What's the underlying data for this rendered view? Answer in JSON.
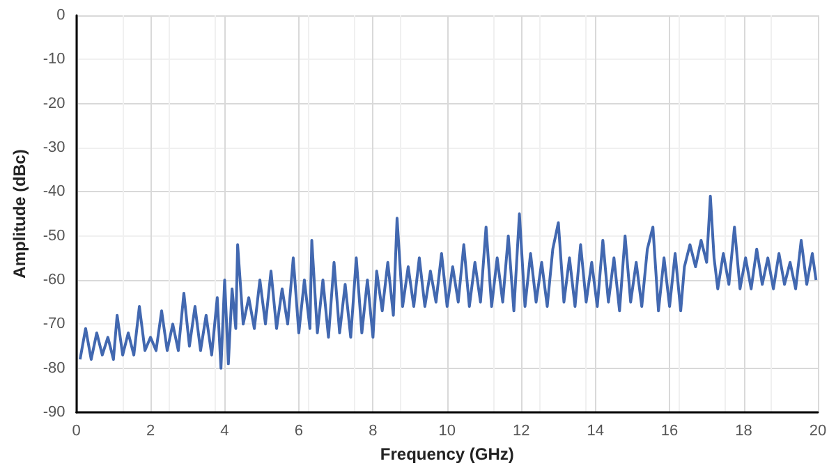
{
  "chart_data": {
    "type": "line",
    "xlabel": "Frequency (GHz)",
    "ylabel": "Amplitude (dBc)",
    "xlim": [
      0,
      20
    ],
    "xticks": [
      0,
      2,
      4,
      6,
      8,
      10,
      12,
      14,
      16,
      18,
      20
    ],
    "ylim": [
      -90,
      0
    ],
    "yticks": [
      -90,
      -80,
      -70,
      -60,
      -50,
      -40,
      -30,
      -20,
      -10,
      0
    ],
    "grid": true,
    "marker": "none",
    "line_style": "solid",
    "x": [
      0.1,
      0.25,
      0.4,
      0.55,
      0.7,
      0.85,
      1.0,
      1.1,
      1.25,
      1.4,
      1.55,
      1.7,
      1.85,
      2.0,
      2.15,
      2.3,
      2.45,
      2.6,
      2.75,
      2.9,
      3.05,
      3.2,
      3.35,
      3.5,
      3.65,
      3.8,
      3.9,
      4.0,
      4.1,
      4.2,
      4.3,
      4.35,
      4.5,
      4.65,
      4.8,
      4.95,
      5.1,
      5.25,
      5.4,
      5.55,
      5.7,
      5.85,
      6.0,
      6.15,
      6.3,
      6.35,
      6.5,
      6.65,
      6.8,
      6.95,
      7.1,
      7.25,
      7.4,
      7.55,
      7.7,
      7.85,
      8.0,
      8.1,
      8.25,
      8.4,
      8.55,
      8.65,
      8.8,
      8.95,
      9.1,
      9.25,
      9.4,
      9.55,
      9.7,
      9.85,
      10.0,
      10.15,
      10.3,
      10.45,
      10.6,
      10.75,
      10.9,
      11.05,
      11.2,
      11.35,
      11.5,
      11.65,
      11.8,
      11.95,
      12.1,
      12.25,
      12.4,
      12.55,
      12.7,
      12.85,
      13.0,
      13.15,
      13.3,
      13.45,
      13.6,
      13.75,
      13.9,
      14.05,
      14.2,
      14.35,
      14.5,
      14.65,
      14.8,
      14.95,
      15.1,
      15.25,
      15.4,
      15.55,
      15.7,
      15.85,
      16.0,
      16.15,
      16.3,
      16.4,
      16.55,
      16.7,
      16.85,
      17.0,
      17.1,
      17.2,
      17.3,
      17.45,
      17.6,
      17.75,
      17.9,
      18.05,
      18.2,
      18.35,
      18.5,
      18.65,
      18.8,
      18.95,
      19.1,
      19.25,
      19.4,
      19.55,
      19.7,
      19.85,
      19.95
    ],
    "series": [
      {
        "color": "#4268b0",
        "values": [
          -78,
          -71,
          -78,
          -72,
          -77,
          -73,
          -78,
          -68,
          -77,
          -72,
          -77,
          -66,
          -76,
          -73,
          -76,
          -67,
          -76,
          -70,
          -76,
          -63,
          -75,
          -66,
          -76,
          -68,
          -77,
          -64,
          -80,
          -60,
          -79,
          -62,
          -71,
          -52,
          -70,
          -64,
          -71,
          -60,
          -70,
          -58,
          -71,
          -62,
          -70,
          -55,
          -72,
          -60,
          -71,
          -51,
          -72,
          -60,
          -73,
          -56,
          -72,
          -61,
          -73,
          -55,
          -72,
          -60,
          -73,
          -58,
          -67,
          -56,
          -68,
          -46,
          -66,
          -57,
          -66,
          -55,
          -66,
          -58,
          -65,
          -54,
          -66,
          -57,
          -65,
          -52,
          -66,
          -56,
          -65,
          -48,
          -66,
          -55,
          -65,
          -50,
          -67,
          -45,
          -66,
          -54,
          -65,
          -56,
          -66,
          -53,
          -47,
          -65,
          -55,
          -66,
          -52,
          -65,
          -56,
          -66,
          -51,
          -65,
          -55,
          -67,
          -50,
          -65,
          -56,
          -66,
          -53,
          -48,
          -67,
          -55,
          -66,
          -54,
          -67,
          -57,
          -52,
          -57,
          -51,
          -56,
          -41,
          -55,
          -62,
          -54,
          -61,
          -48,
          -62,
          -55,
          -62,
          -53,
          -61,
          -55,
          -62,
          -54,
          -61,
          -56,
          -62,
          -51,
          -61,
          -54,
          -60
        ]
      }
    ]
  }
}
